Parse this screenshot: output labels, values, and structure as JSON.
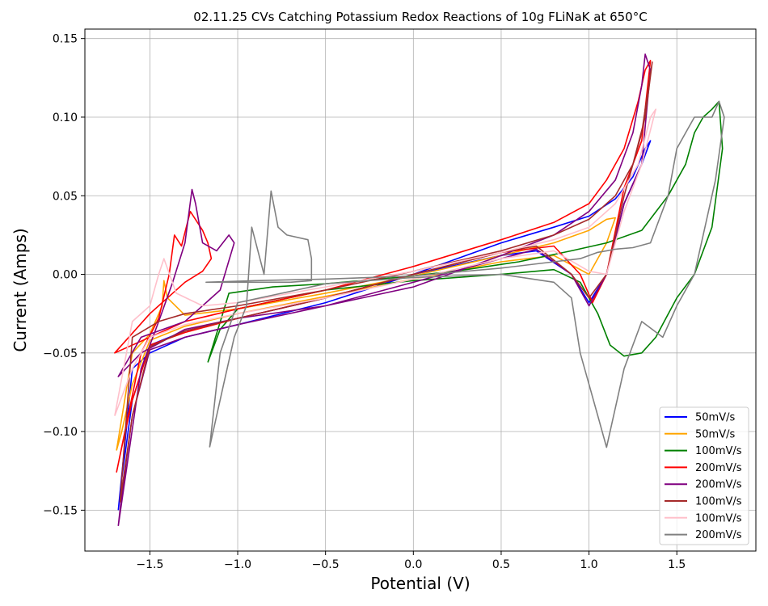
{
  "chart_data": {
    "type": "line",
    "title": "02.11.25 CVs Catching Potassium Redox Reactions of 10g FLiNaK at 650°C",
    "xlabel": "Potential (V)",
    "ylabel": "Current (Amps)",
    "xlim": [
      -1.87,
      1.95
    ],
    "ylim": [
      -0.176,
      0.156
    ],
    "xticks": [
      -1.5,
      -1.0,
      -0.5,
      0.0,
      0.5,
      1.0,
      1.5
    ],
    "xtick_labels": [
      "−1.5",
      "−1.0",
      "−0.5",
      "0.0",
      "0.5",
      "1.0",
      "1.5"
    ],
    "yticks": [
      -0.15,
      -0.1,
      -0.05,
      0.0,
      0.05,
      0.1,
      0.15
    ],
    "ytick_labels": [
      "−0.15",
      "−0.10",
      "−0.05",
      "0.00",
      "0.05",
      "0.10",
      "0.15"
    ],
    "grid": true,
    "legend_position": "lower-right",
    "series": [
      {
        "name": "50mV/s",
        "color": "#0000ff",
        "x": [
          -1.68,
          -1.6,
          -1.5,
          -1.3,
          -1.0,
          -0.5,
          0.0,
          0.5,
          0.8,
          1.0,
          1.15,
          1.25,
          1.32,
          1.35,
          1.3,
          1.2,
          1.1,
          1.0,
          0.9,
          0.7,
          0.5,
          0.0,
          -0.5,
          -1.0,
          -1.3,
          -1.5,
          -1.6,
          -1.66,
          -1.68
        ],
        "y": [
          -0.15,
          -0.06,
          -0.05,
          -0.04,
          -0.032,
          -0.018,
          0.0,
          0.02,
          0.03,
          0.037,
          0.048,
          0.062,
          0.08,
          0.085,
          0.07,
          0.045,
          0.0,
          -0.018,
          0.0,
          0.015,
          0.012,
          0.0,
          -0.015,
          -0.028,
          -0.036,
          -0.045,
          -0.08,
          -0.13,
          -0.15
        ]
      },
      {
        "name": "50mV/s",
        "color": "#ffa500",
        "x": [
          -1.69,
          -1.6,
          -1.5,
          -1.43,
          -1.42,
          -1.4,
          -1.3,
          -1.0,
          -0.5,
          0.0,
          0.5,
          0.8,
          1.0,
          1.1,
          1.15,
          1.1,
          1.0,
          0.8,
          0.5,
          0.0,
          -0.5,
          -1.0,
          -1.3,
          -1.5,
          -1.6,
          -1.66,
          -1.69
        ],
        "y": [
          -0.112,
          -0.05,
          -0.038,
          -0.02,
          -0.004,
          -0.015,
          -0.026,
          -0.022,
          -0.012,
          -0.001,
          0.012,
          0.02,
          0.028,
          0.035,
          0.036,
          0.02,
          0.0,
          0.012,
          0.008,
          -0.003,
          -0.014,
          -0.025,
          -0.033,
          -0.042,
          -0.07,
          -0.1,
          -0.112
        ]
      },
      {
        "name": "100mV/s",
        "color": "#008000",
        "x": [
          -1.17,
          -1.05,
          -0.8,
          -0.5,
          -0.2,
          0.0,
          0.3,
          0.6,
          0.9,
          1.1,
          1.3,
          1.45,
          1.55,
          1.6,
          1.65,
          1.7,
          1.74,
          1.76,
          1.7,
          1.6,
          1.5,
          1.38,
          1.3,
          1.2,
          1.12,
          1.05,
          0.95,
          0.8,
          0.5,
          0.0,
          -0.5,
          -1.0,
          -1.1,
          -1.17
        ],
        "y": [
          -0.056,
          -0.012,
          -0.008,
          -0.006,
          -0.003,
          -0.001,
          0.003,
          0.008,
          0.015,
          0.02,
          0.028,
          0.05,
          0.07,
          0.09,
          0.1,
          0.105,
          0.11,
          0.08,
          0.03,
          0.0,
          -0.015,
          -0.04,
          -0.05,
          -0.052,
          -0.045,
          -0.025,
          -0.005,
          0.003,
          0.0,
          -0.004,
          -0.01,
          -0.022,
          -0.035,
          -0.056
        ]
      },
      {
        "name": "200mV/s",
        "color": "#ff0000",
        "x": [
          -1.69,
          -1.55,
          -1.45,
          -1.39,
          -1.36,
          -1.32,
          -1.27,
          -1.2,
          -1.17,
          -1.15,
          -1.2,
          -1.3,
          -1.5,
          -1.7,
          -1.5,
          -1.3,
          -1.0,
          -0.5,
          0.0,
          0.5,
          0.8,
          1.0,
          1.1,
          1.2,
          1.28,
          1.32,
          1.35,
          1.3,
          1.2,
          1.1,
          1.02,
          0.95,
          0.8,
          0.5,
          0.0,
          -0.5,
          -1.0,
          -1.3,
          -1.5,
          -1.6,
          -1.66,
          -1.69
        ],
        "y": [
          -0.126,
          -0.05,
          -0.028,
          0.0,
          0.025,
          0.018,
          0.04,
          0.028,
          0.02,
          0.01,
          0.002,
          -0.005,
          -0.025,
          -0.05,
          -0.04,
          -0.03,
          -0.022,
          -0.01,
          0.005,
          0.022,
          0.033,
          0.045,
          0.06,
          0.08,
          0.11,
          0.13,
          0.136,
          0.085,
          0.055,
          0.0,
          -0.018,
          0.0,
          0.018,
          0.014,
          0.0,
          -0.015,
          -0.028,
          -0.037,
          -0.045,
          -0.08,
          -0.11,
          -0.126
        ]
      },
      {
        "name": "200mV/s",
        "color": "#800080",
        "x": [
          -1.68,
          -1.55,
          -1.45,
          -1.37,
          -1.3,
          -1.26,
          -1.24,
          -1.2,
          -1.12,
          -1.05,
          -1.02,
          -1.1,
          -1.3,
          -1.55,
          -1.68,
          -1.55,
          -1.3,
          -1.0,
          -0.5,
          0.0,
          0.5,
          0.8,
          1.0,
          1.15,
          1.25,
          1.3,
          1.32,
          1.35,
          1.3,
          1.2,
          1.1,
          1.0,
          0.9,
          0.7,
          0.5,
          0.0,
          -0.5,
          -1.0,
          -1.3,
          -1.5,
          -1.6,
          -1.66,
          -1.68
        ],
        "y": [
          -0.16,
          -0.06,
          -0.03,
          -0.005,
          0.02,
          0.054,
          0.045,
          0.02,
          0.015,
          0.025,
          0.02,
          -0.01,
          -0.03,
          -0.04,
          -0.065,
          -0.05,
          -0.035,
          -0.028,
          -0.02,
          -0.008,
          0.012,
          0.025,
          0.04,
          0.06,
          0.09,
          0.12,
          0.14,
          0.13,
          0.07,
          0.045,
          0.0,
          -0.02,
          0.0,
          0.016,
          0.01,
          -0.005,
          -0.02,
          -0.032,
          -0.04,
          -0.048,
          -0.09,
          -0.14,
          -0.16
        ]
      },
      {
        "name": "100mV/s",
        "color": "#a52a2a",
        "x": [
          -1.67,
          -1.6,
          -1.45,
          -1.3,
          -1.0,
          -0.5,
          0.0,
          0.5,
          0.8,
          1.0,
          1.15,
          1.25,
          1.32,
          1.36,
          1.3,
          1.2,
          1.1,
          1.0,
          0.9,
          0.7,
          0.5,
          0.0,
          -0.5,
          -1.0,
          -1.3,
          -1.5,
          -1.6,
          -1.67
        ],
        "y": [
          -0.145,
          -0.04,
          -0.03,
          -0.025,
          -0.02,
          -0.01,
          0.002,
          0.015,
          0.025,
          0.035,
          0.05,
          0.07,
          0.1,
          0.135,
          0.09,
          0.05,
          0.0,
          -0.015,
          0.0,
          0.018,
          0.014,
          0.0,
          -0.015,
          -0.028,
          -0.036,
          -0.046,
          -0.09,
          -0.145
        ]
      },
      {
        "name": "100mV/s",
        "color": "#ffc0cb",
        "x": [
          -1.7,
          -1.6,
          -1.5,
          -1.45,
          -1.42,
          -1.35,
          -1.2,
          -1.0,
          -0.5,
          0.0,
          0.5,
          0.8,
          1.0,
          1.15,
          1.28,
          1.35,
          1.38,
          1.3,
          1.2,
          1.1,
          1.0,
          0.8,
          0.5,
          0.0,
          -0.5,
          -1.0,
          -1.3,
          -1.5,
          -1.6,
          -1.7
        ],
        "y": [
          -0.09,
          -0.03,
          -0.02,
          0.0,
          0.01,
          -0.012,
          -0.02,
          -0.018,
          -0.008,
          0.002,
          0.014,
          0.022,
          0.03,
          0.045,
          0.07,
          0.1,
          0.105,
          0.07,
          0.04,
          0.0,
          0.002,
          0.015,
          0.01,
          -0.003,
          -0.015,
          -0.025,
          -0.032,
          -0.04,
          -0.06,
          -0.09
        ]
      },
      {
        "name": "200mV/s",
        "color": "#808080",
        "x": [
          -1.16,
          -1.08,
          -1.02,
          -0.95,
          -0.92,
          -0.85,
          -0.81,
          -0.77,
          -0.72,
          -0.6,
          -0.58,
          -0.58,
          -0.7,
          -0.9,
          -1.05,
          -1.18,
          -0.9,
          -0.5,
          0.0,
          0.5,
          0.8,
          0.95,
          1.0,
          1.05,
          1.1,
          1.15,
          1.25,
          1.35,
          1.45,
          1.5,
          1.55,
          1.6,
          1.65,
          1.7,
          1.74,
          1.77,
          1.72,
          1.6,
          1.5,
          1.42,
          1.3,
          1.2,
          1.1,
          1.05,
          1.0,
          0.95,
          0.9,
          0.8,
          0.5,
          0.0,
          -0.5,
          -1.0,
          -1.1,
          -1.16
        ],
        "y": [
          -0.11,
          -0.07,
          -0.04,
          -0.02,
          0.03,
          0.0,
          0.053,
          0.03,
          0.025,
          0.022,
          0.01,
          -0.004,
          -0.005,
          -0.005,
          -0.005,
          -0.005,
          -0.004,
          -0.003,
          -0.001,
          0.004,
          0.008,
          0.01,
          0.012,
          0.014,
          0.015,
          0.016,
          0.017,
          0.02,
          0.05,
          0.08,
          0.09,
          0.1,
          0.1,
          0.1,
          0.11,
          0.1,
          0.06,
          0.0,
          -0.02,
          -0.04,
          -0.03,
          -0.06,
          -0.11,
          -0.09,
          -0.07,
          -0.05,
          -0.015,
          -0.005,
          0.0,
          -0.002,
          -0.006,
          -0.018,
          -0.05,
          -0.11
        ]
      }
    ]
  }
}
